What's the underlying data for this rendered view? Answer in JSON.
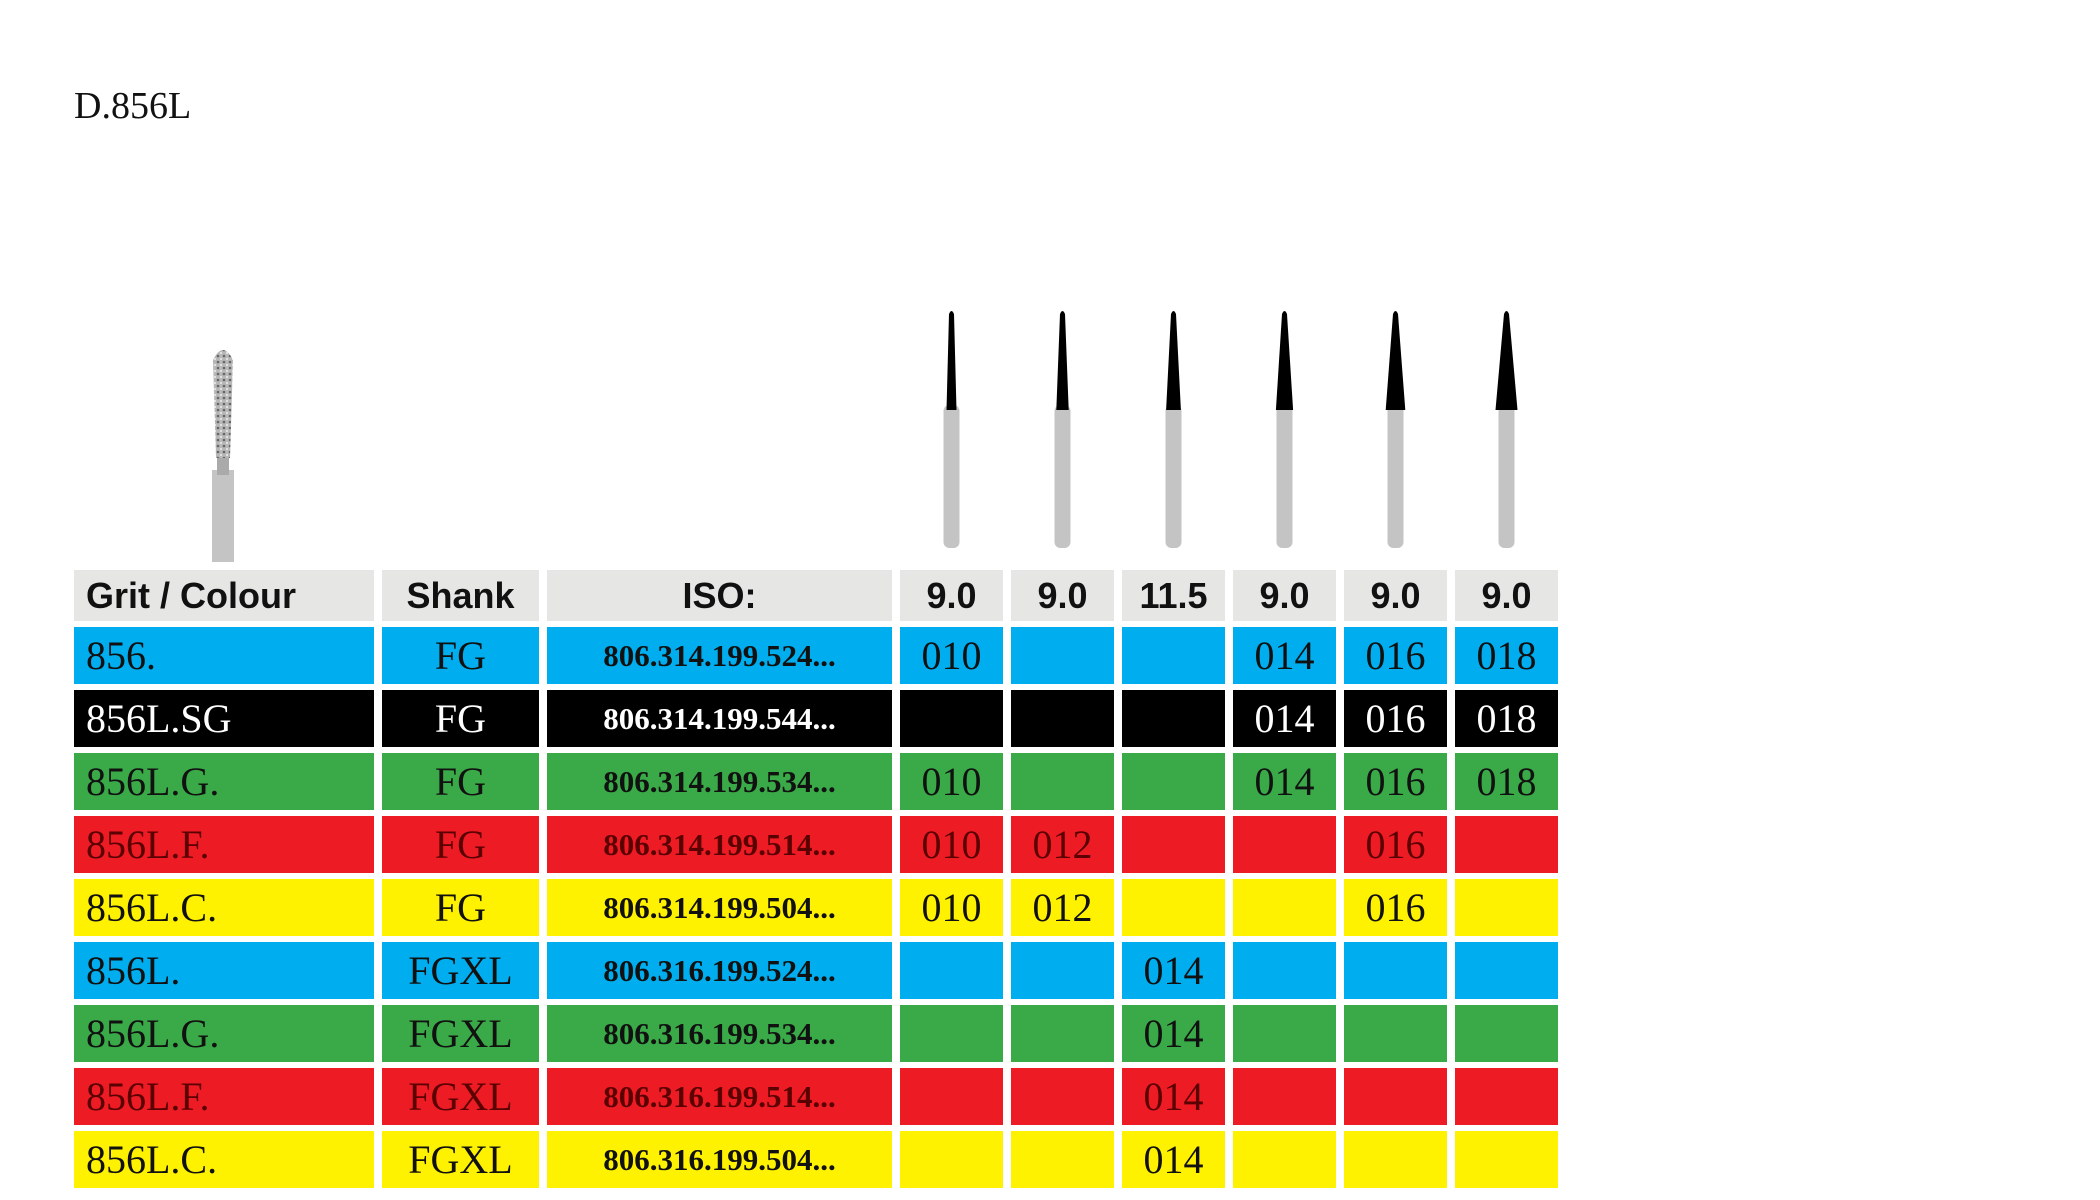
{
  "header": {
    "title": "D.856L"
  },
  "table": {
    "header": [
      "Grit / Colour",
      "Shank",
      "ISO:",
      "9.0",
      "9.0",
      "11.5",
      "9.0",
      "9.0",
      "9.0"
    ],
    "rows": [
      {
        "color": "#00aeef",
        "cells": [
          "856.",
          "FG",
          "806.314.199.524...",
          "010",
          null,
          null,
          "014",
          "016",
          "018"
        ]
      },
      {
        "color": "#000000",
        "cells": [
          "856L.SG",
          "FG",
          "806.314.199.544...",
          null,
          null,
          null,
          "014",
          "016",
          "018"
        ]
      },
      {
        "color": "#3aaa48",
        "cells": [
          "856L.G.",
          "FG",
          "806.314.199.534...",
          "010",
          null,
          null,
          "014",
          "016",
          "018"
        ]
      },
      {
        "color": "#ed1c24",
        "cells": [
          "856L.F.",
          "FG",
          "806.314.199.514...",
          "010",
          "012",
          null,
          null,
          "016",
          null
        ]
      },
      {
        "color": "#fff200",
        "cells": [
          "856L.C.",
          "FG",
          "806.314.199.504...",
          "010",
          "012",
          null,
          null,
          "016",
          null
        ]
      },
      {
        "color": "#00aeef",
        "cells": [
          "856L.",
          "FGXL",
          "806.316.199.524...",
          null,
          null,
          "014",
          null,
          null,
          null
        ]
      },
      {
        "color": "#3aaa48",
        "cells": [
          "856L.G.",
          "FGXL",
          "806.316.199.534...",
          null,
          null,
          "014",
          null,
          null,
          null
        ]
      },
      {
        "color": "#ed1c24",
        "cells": [
          "856L.F.",
          "FGXL",
          "806.316.199.514...",
          null,
          null,
          "014",
          null,
          null,
          null
        ]
      },
      {
        "color": "#fff200",
        "cells": [
          "856L.C.",
          "FGXL",
          "806.316.199.504...",
          null,
          null,
          "014",
          null,
          null,
          null
        ]
      }
    ]
  }
}
